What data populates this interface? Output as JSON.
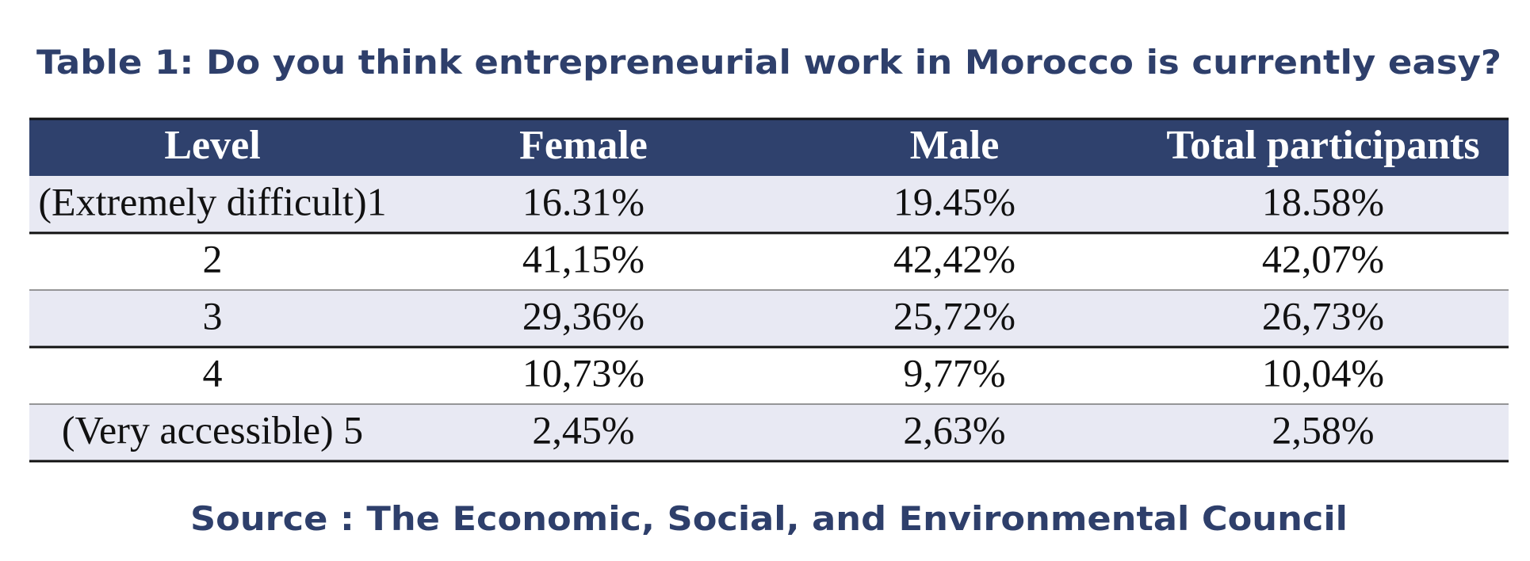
{
  "title": "Table 1: Do you think entrepreneurial work in Morocco is currently easy?",
  "table": {
    "header": [
      "Level",
      "Female",
      "Male",
      "Total participants"
    ],
    "rows": [
      [
        "(Extremely difficult)1",
        "16.31%",
        "19.45%",
        "18.58%"
      ],
      [
        "2",
        "41,15%",
        "42,42%",
        "42,07%"
      ],
      [
        "3",
        "29,36%",
        "25,72%",
        "26,73%"
      ],
      [
        "4",
        "10,73%",
        "9,77%",
        "10,04%"
      ],
      [
        "(Very accessible) 5",
        "2,45%",
        "2,63%",
        "2,58%"
      ]
    ]
  },
  "source": "Source : The Economic, Social, and Environmental Council"
}
